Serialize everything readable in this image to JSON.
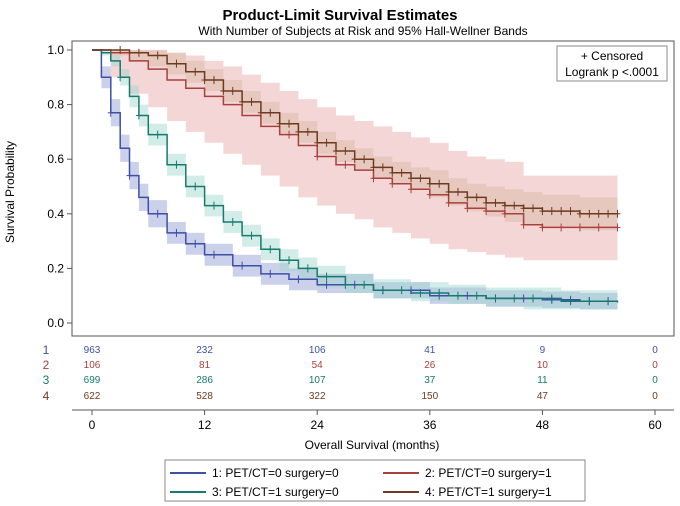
{
  "chart_data": {
    "type": "line",
    "title": "Product-Limit Survival Estimates",
    "subtitle": "With Number of Subjects at Risk and 95% Hall-Wellner Bands",
    "xlabel": "Overall Survival (months)",
    "ylabel": "Survival Probability",
    "xlim": [
      0,
      60
    ],
    "ylim": [
      0,
      1.0
    ],
    "xticks": [
      "0",
      "12",
      "24",
      "36",
      "48",
      "60"
    ],
    "yticks": [
      "0.0",
      "0.2",
      "0.4",
      "0.6",
      "0.8",
      "1.0"
    ],
    "inset": {
      "censored_label": "+ Censored",
      "logrank_label": "Logrank p <.0001"
    },
    "risk_times": [
      0,
      12,
      24,
      36,
      48,
      60
    ],
    "series": [
      {
        "id": "1",
        "name": "1: PET/CT=0 surgery=0",
        "color": "#3f4fa6",
        "band": "#8c96d2",
        "x": [
          0,
          1,
          2,
          3,
          4,
          5,
          6,
          8,
          10,
          12,
          15,
          18,
          21,
          24,
          30,
          36,
          42,
          48,
          52,
          56
        ],
        "y": [
          1.0,
          0.9,
          0.77,
          0.64,
          0.54,
          0.46,
          0.4,
          0.33,
          0.29,
          0.25,
          0.21,
          0.18,
          0.16,
          0.14,
          0.12,
          0.1,
          0.09,
          0.085,
          0.08,
          0.075
        ],
        "lower": [
          1.0,
          0.86,
          0.72,
          0.59,
          0.49,
          0.41,
          0.35,
          0.29,
          0.25,
          0.21,
          0.17,
          0.14,
          0.12,
          0.11,
          0.09,
          0.07,
          0.06,
          0.055,
          0.05,
          0.05
        ],
        "upper": [
          1.0,
          0.94,
          0.82,
          0.69,
          0.59,
          0.51,
          0.45,
          0.37,
          0.33,
          0.29,
          0.25,
          0.22,
          0.2,
          0.18,
          0.15,
          0.13,
          0.12,
          0.115,
          0.11,
          0.1
        ],
        "censor_x": [
          2,
          4,
          7,
          9,
          11,
          13,
          16,
          19,
          22,
          25,
          28,
          31,
          34,
          37,
          40,
          43,
          46,
          49,
          51,
          53,
          55
        ],
        "at_risk": [
          "963",
          "232",
          "106",
          "41",
          "9",
          "0"
        ]
      },
      {
        "id": "2",
        "name": "2: PET/CT=0 surgery=1",
        "color": "#a8413d",
        "band": "#e7a3a3",
        "x": [
          0,
          2,
          4,
          6,
          8,
          10,
          12,
          14,
          16,
          18,
          20,
          22,
          24,
          26,
          28,
          30,
          32,
          34,
          36,
          38,
          40,
          42,
          44,
          46,
          48,
          52,
          56
        ],
        "y": [
          1.0,
          0.99,
          0.96,
          0.93,
          0.89,
          0.86,
          0.83,
          0.8,
          0.76,
          0.72,
          0.69,
          0.65,
          0.61,
          0.58,
          0.56,
          0.53,
          0.51,
          0.49,
          0.47,
          0.44,
          0.42,
          0.41,
          0.4,
          0.36,
          0.35,
          0.35,
          0.35
        ],
        "lower": [
          1.0,
          0.9,
          0.84,
          0.79,
          0.74,
          0.7,
          0.66,
          0.62,
          0.58,
          0.54,
          0.5,
          0.46,
          0.43,
          0.4,
          0.38,
          0.35,
          0.33,
          0.31,
          0.29,
          0.27,
          0.26,
          0.25,
          0.24,
          0.23,
          0.23,
          0.23,
          0.23
        ],
        "upper": [
          1.0,
          1.0,
          1.0,
          1.0,
          0.99,
          0.98,
          0.96,
          0.94,
          0.91,
          0.88,
          0.85,
          0.82,
          0.79,
          0.76,
          0.74,
          0.72,
          0.7,
          0.68,
          0.66,
          0.63,
          0.61,
          0.6,
          0.59,
          0.54,
          0.54,
          0.54,
          0.54
        ],
        "censor_x": [
          21,
          24,
          27,
          30,
          32,
          34,
          36,
          38,
          40,
          42,
          44,
          46,
          48,
          50,
          52,
          54,
          56
        ],
        "at_risk": [
          "106",
          "81",
          "54",
          "26",
          "10",
          "0"
        ]
      },
      {
        "id": "3",
        "name": "3: PET/CT=1 surgery=0",
        "color": "#167a6e",
        "band": "#9bd4cd",
        "x": [
          0,
          1,
          2,
          3,
          4,
          5,
          6,
          8,
          10,
          12,
          14,
          16,
          18,
          20,
          22,
          24,
          27,
          30,
          34,
          38,
          42,
          46,
          50,
          54,
          56
        ],
        "y": [
          1.0,
          0.99,
          0.96,
          0.9,
          0.83,
          0.76,
          0.69,
          0.58,
          0.5,
          0.43,
          0.37,
          0.32,
          0.27,
          0.23,
          0.2,
          0.17,
          0.14,
          0.12,
          0.11,
          0.1,
          0.09,
          0.09,
          0.08,
          0.08,
          0.08
        ],
        "lower": [
          1.0,
          0.98,
          0.94,
          0.87,
          0.79,
          0.72,
          0.65,
          0.54,
          0.46,
          0.39,
          0.33,
          0.28,
          0.23,
          0.19,
          0.16,
          0.13,
          0.11,
          0.09,
          0.08,
          0.07,
          0.06,
          0.05,
          0.05,
          0.05,
          0.05
        ],
        "upper": [
          1.0,
          1.0,
          0.98,
          0.93,
          0.87,
          0.8,
          0.73,
          0.62,
          0.54,
          0.47,
          0.41,
          0.36,
          0.31,
          0.27,
          0.24,
          0.21,
          0.18,
          0.16,
          0.15,
          0.14,
          0.13,
          0.13,
          0.12,
          0.12,
          0.12
        ],
        "censor_x": [
          3,
          5,
          7,
          9,
          11,
          13,
          15,
          17,
          19,
          21,
          23,
          25,
          27,
          29,
          31,
          33,
          35,
          37,
          39,
          41,
          43,
          45,
          47,
          49,
          51,
          53,
          55
        ],
        "at_risk": [
          "699",
          "286",
          "107",
          "37",
          "11",
          "0"
        ]
      },
      {
        "id": "4",
        "name": "4: PET/CT=1 surgery=1",
        "color": "#6e3a1e",
        "band": "#d7b8a4",
        "x": [
          0,
          2,
          4,
          6,
          8,
          10,
          12,
          14,
          16,
          18,
          20,
          22,
          24,
          26,
          28,
          30,
          32,
          34,
          36,
          38,
          40,
          42,
          44,
          46,
          48,
          52,
          56
        ],
        "y": [
          1.0,
          1.0,
          0.99,
          0.98,
          0.95,
          0.92,
          0.89,
          0.85,
          0.81,
          0.77,
          0.73,
          0.7,
          0.66,
          0.63,
          0.6,
          0.57,
          0.55,
          0.53,
          0.51,
          0.48,
          0.46,
          0.44,
          0.43,
          0.42,
          0.41,
          0.4,
          0.4
        ],
        "lower": [
          1.0,
          0.98,
          0.96,
          0.94,
          0.91,
          0.88,
          0.85,
          0.81,
          0.77,
          0.73,
          0.69,
          0.66,
          0.62,
          0.59,
          0.56,
          0.53,
          0.51,
          0.49,
          0.46,
          0.43,
          0.41,
          0.39,
          0.37,
          0.36,
          0.35,
          0.34,
          0.34
        ],
        "upper": [
          1.0,
          1.0,
          1.0,
          1.0,
          0.99,
          0.96,
          0.93,
          0.89,
          0.85,
          0.81,
          0.77,
          0.74,
          0.7,
          0.67,
          0.64,
          0.61,
          0.59,
          0.57,
          0.56,
          0.53,
          0.51,
          0.5,
          0.49,
          0.48,
          0.47,
          0.46,
          0.46
        ],
        "censor_x": [
          3,
          5,
          7,
          9,
          11,
          12,
          13,
          14,
          15,
          16,
          17,
          18,
          19,
          20,
          21,
          22,
          23,
          24,
          25,
          26,
          27,
          28,
          29,
          30,
          31,
          32,
          33,
          34,
          35,
          36,
          37,
          38,
          39,
          40,
          41,
          42,
          43,
          44,
          45,
          46,
          47,
          48,
          49,
          50,
          51,
          52,
          53,
          54,
          55,
          56
        ],
        "at_risk": [
          "622",
          "528",
          "322",
          "150",
          "47",
          "0"
        ]
      }
    ]
  }
}
